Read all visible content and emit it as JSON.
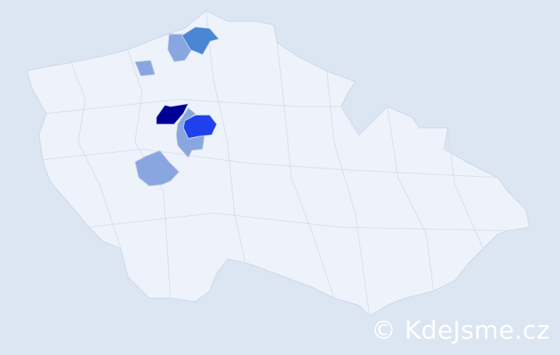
{
  "colors": {
    "background": "#dce6f2",
    "country_fill": "#eef2fa",
    "border": "#c9d4ea",
    "level_max": "#000096",
    "level_high": "#2040ee",
    "level_mid": "#4a86d4",
    "level_low": "#8aa6e0"
  },
  "highlighted_districts": [
    {
      "level": "level_max"
    },
    {
      "level": "level_high"
    },
    {
      "level": "level_mid"
    },
    {
      "level": "level_low"
    },
    {
      "level": "level_low"
    },
    {
      "level": "level_low"
    },
    {
      "level": "level_low"
    }
  ],
  "watermark": "© KdeJsme.cz"
}
